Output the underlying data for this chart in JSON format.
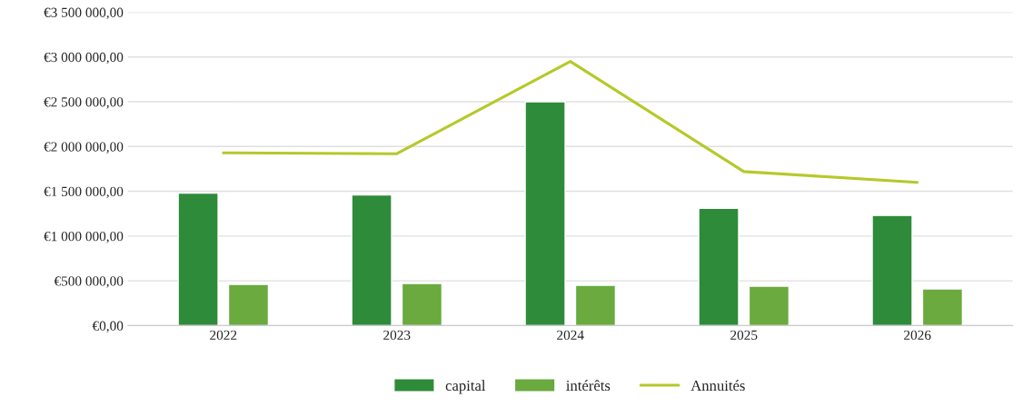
{
  "chart_data": {
    "type": "bar",
    "categories": [
      "2022",
      "2023",
      "2024",
      "2025",
      "2026"
    ],
    "series": [
      {
        "name": "capital",
        "color": "#2e8b3a",
        "values": [
          1480000,
          1460000,
          2500000,
          1310000,
          1230000
        ]
      },
      {
        "name": "intérêts",
        "color": "#6aaa3e",
        "values": [
          460000,
          470000,
          450000,
          440000,
          410000
        ]
      },
      {
        "name": "Annuités",
        "type": "line",
        "color": "#b5c92a",
        "values": [
          1930000,
          1920000,
          2950000,
          1720000,
          1600000
        ]
      }
    ],
    "ylim": [
      0,
      3500000
    ],
    "yticks": [
      {
        "value": 0,
        "label": "€0,00"
      },
      {
        "value": 500000,
        "label": "€500 000,00"
      },
      {
        "value": 1000000,
        "label": "€1 000 000,00"
      },
      {
        "value": 1500000,
        "label": "€1 500 000,00"
      },
      {
        "value": 2000000,
        "label": "€2 000 000,00"
      },
      {
        "value": 2500000,
        "label": "€2 500 000,00"
      },
      {
        "value": 3000000,
        "label": "€3 000 000,00"
      },
      {
        "value": 3500000,
        "label": "€3 500 000,00"
      }
    ],
    "grid": "y",
    "legend": "bottom",
    "marker": "none",
    "line_style": "solid"
  }
}
